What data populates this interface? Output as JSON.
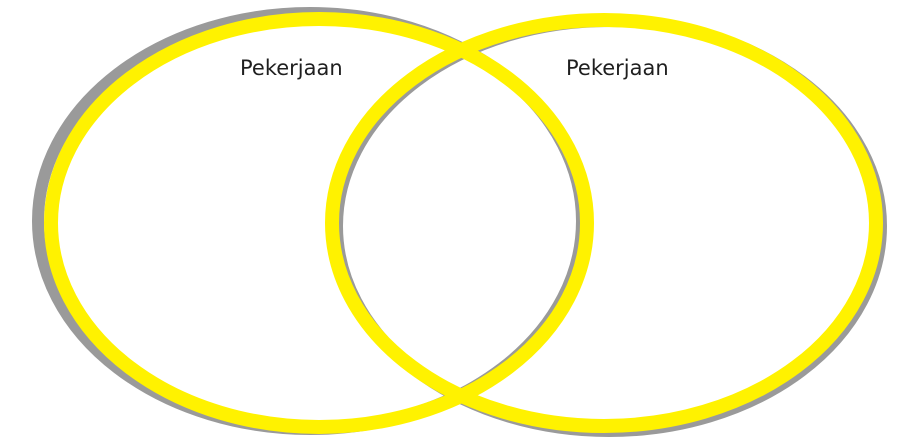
{
  "diagram": {
    "type": "venn",
    "colors": {
      "ring": "#fff200",
      "shadow": "#9a9a9a",
      "background": "#ffffff",
      "text": "#1f1f1f"
    },
    "sets": [
      {
        "label": "Pekerjaan"
      },
      {
        "label": "Pekerjaan"
      }
    ]
  }
}
